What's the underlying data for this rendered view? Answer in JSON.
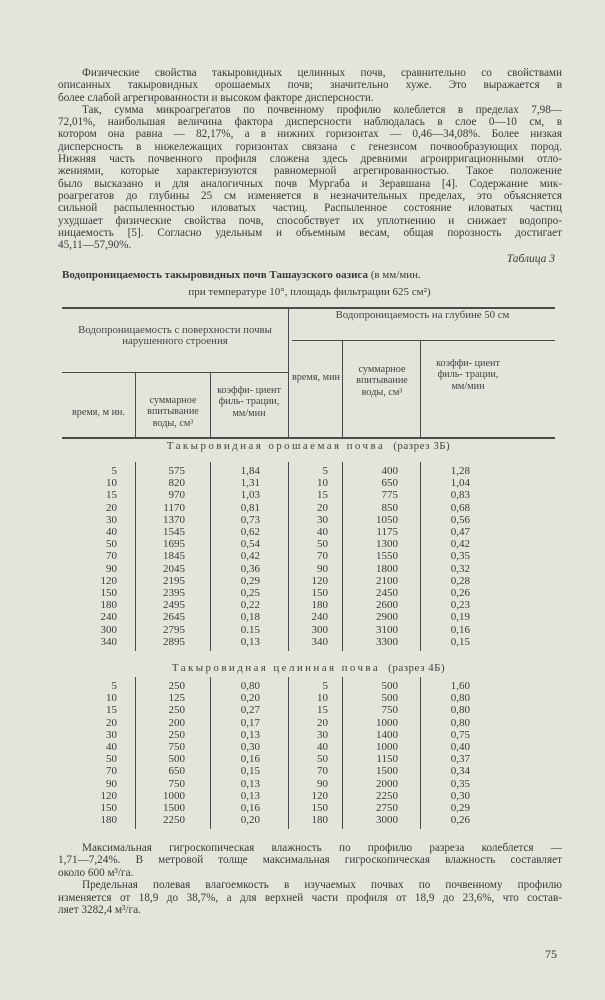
{
  "paragraphs_top": [
    {
      "lines": [
        "Физические свойства такыровидных целинных почв, сравнительно со свойствами",
        "описанных такыровидных орошаемых почв; значительно  хуже.  Это  выражается  в",
        "более слабой агрегированности и высоком факторе дисперсности."
      ]
    },
    {
      "lines": [
        "Так, сумма микроагрегатов по почвенному профилю колеблется в пределах 7,98—",
        "72,01%, наибольшая величина фактора дисперсности наблюдалась в слое 0—10 см, в",
        "котором она равна — 82,17%, а в нижних горизонтах — 0,46—34,08%. Более низкая",
        "дисперсность в нижележащих горизонтах связана с генезисом почвообразующих пород.",
        "Нижняя часть почвенного профиля сложена здесь древними агроирригационными отло-",
        "жениями, которые характеризуются равномерной агрегированностью. Такое положение",
        "было высказано и для аналогичных почв Мургаба и Зеравшана [4]. Содержание мик-",
        "роагрегатов до глубины 25 см изменяется в незначительных пределах, это объясняется",
        "сильной распыленностью иловатых частиц. Распыленное состояние иловатых частиц",
        "ухудшает физические свойства почв, способствует их уплотнению и снижает водопро-",
        "ницаемость [5]. Согласно удельным и объемным весам, общая порозность достигает",
        "45,11—57,90%."
      ]
    }
  ],
  "table": {
    "label": "Таблица 3",
    "title_bold": "Водопроницаемость такыровидных почв Ташаузского оазиса",
    "title_rest": "(в мм/мин.",
    "title_line2": "при температуре 10°, площадь фильтрации 625 см²)",
    "group_left": "Водопроницаемость с поверхности почвы нарушенного строения",
    "group_right": "Водопроницаемость на глубине 50 см",
    "columns": [
      "время, м ин.",
      "суммарное впитывание воды, см³",
      "коэффи- циент филь- трации, мм/мин",
      "время, мин",
      "суммарное впитывание воды, см³",
      "коэффи- циент филь- трации, мм/мин"
    ],
    "sections": [
      {
        "title": "Такыровидная орошаемая почва",
        "title_paren": "(разрез 3Б)",
        "rows": [
          [
            "5",
            "575",
            "1,84",
            "5",
            "400",
            "1,28"
          ],
          [
            "10",
            "820",
            "1,31",
            "10",
            "650",
            "1,04"
          ],
          [
            "15",
            "970",
            "1,03",
            "15",
            "775",
            "0,83"
          ],
          [
            "20",
            "1170",
            "0,81",
            "20",
            "850",
            "0,68"
          ],
          [
            "30",
            "1370",
            "0,73",
            "30",
            "1050",
            "0,56"
          ],
          [
            "40",
            "1545",
            "0,62",
            "40",
            "1175",
            "0,47"
          ],
          [
            "50",
            "1695",
            "0,54",
            "50",
            "1300",
            "0,42"
          ],
          [
            "70",
            "1845",
            "0,42",
            "70",
            "1550",
            "0,35"
          ],
          [
            "90",
            "2045",
            "0,36",
            "90",
            "1800",
            "0,32"
          ],
          [
            "120",
            "2195",
            "0,29",
            "120",
            "2100",
            "0,28"
          ],
          [
            "150",
            "2395",
            "0,25",
            "150",
            "2450",
            "0,26"
          ],
          [
            "180",
            "2495",
            "0,22",
            "180",
            "2600",
            "0,23"
          ],
          [
            "240",
            "2645",
            "0,18",
            "240",
            "2900",
            "0,19"
          ],
          [
            "300",
            "2795",
            "0.15",
            "300",
            "3100",
            "0,16"
          ],
          [
            "340",
            "2895",
            "0,13",
            "340",
            "3300",
            "0,15"
          ]
        ]
      },
      {
        "title": "Такыровидная целинная почва",
        "title_paren": "(разрез 4Б)",
        "rows": [
          [
            "5",
            "250",
            "0,80",
            "5",
            "500",
            "1,60"
          ],
          [
            "10",
            "125",
            "0,20",
            "10",
            "500",
            "0,80"
          ],
          [
            "15",
            "250",
            "0,27",
            "15",
            "750",
            "0,80"
          ],
          [
            "20",
            "200",
            "0,17",
            "20",
            "1000",
            "0,80"
          ],
          [
            "30",
            "250",
            "0,13",
            "30",
            "1400",
            "0,75"
          ],
          [
            "40",
            "750",
            "0,30",
            "40",
            "1000",
            "0,40"
          ],
          [
            "50",
            "500",
            "0,16",
            "50",
            "1150",
            "0,37"
          ],
          [
            "70",
            "650",
            "0,15",
            "70",
            "1500",
            "0,34"
          ],
          [
            "90",
            "750",
            "0,13",
            "90",
            "2000",
            "0,35"
          ],
          [
            "120",
            "1000",
            "0,13",
            "120",
            "2250",
            "0,30"
          ],
          [
            "150",
            "1500",
            "0,16",
            "150",
            "2750",
            "0,29"
          ],
          [
            "180",
            "2250",
            "0,20",
            "180",
            "3000",
            "0,26"
          ]
        ]
      }
    ]
  },
  "paragraphs_bottom": [
    {
      "lines": [
        "Максимальная  гигроскопическая  влажность  по  профилю  разреза   колеблется —",
        "1,71—7,24%. В метровой толще максимальная гигроскопическая влажность составляет",
        "около 600 м³/га."
      ]
    },
    {
      "lines": [
        "Предельная полевая влагоемкость в изучаемых почвах по почвенному профилю",
        "изменяется от 18,9 до 38,7%, а для верхней части профиля от 18,9 до 23,6%, что состав-",
        "ляет 3282,4 м³/га."
      ]
    }
  ],
  "page_number": "75"
}
